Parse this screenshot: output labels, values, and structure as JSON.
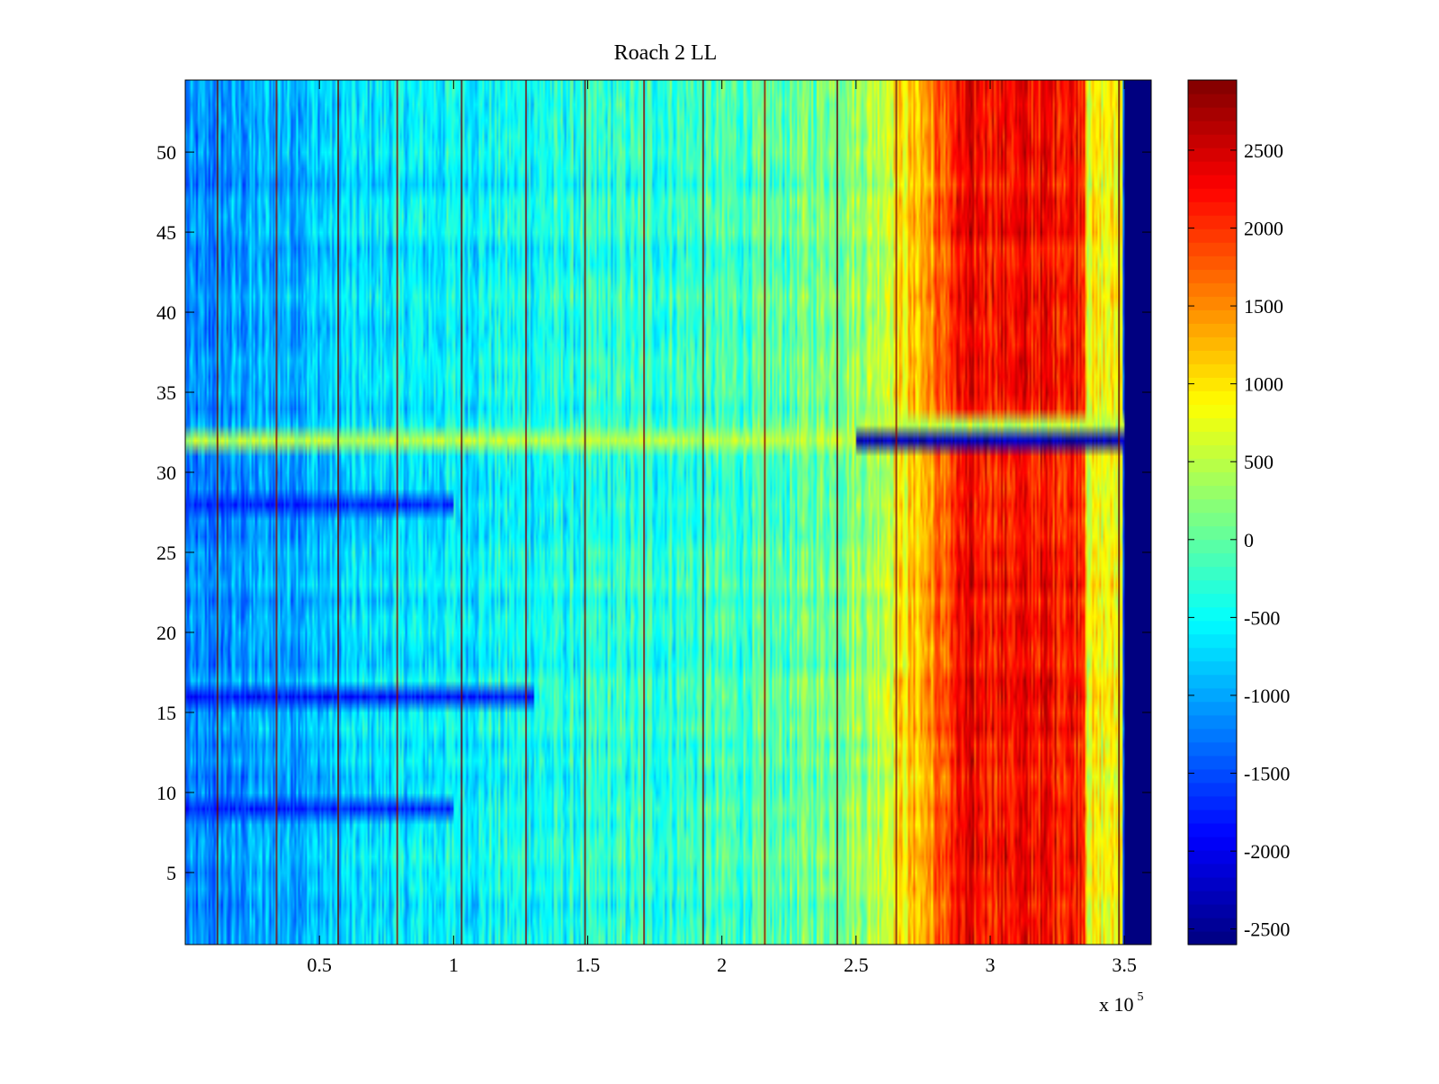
{
  "chart_data": {
    "type": "heatmap",
    "title": "Roach 2 LL",
    "xlabel": "",
    "ylabel": "",
    "x_multiplier_label": {
      "base": "x 10",
      "exponent": "5"
    },
    "xlim": [
      0,
      360000
    ],
    "ylim": [
      0.5,
      54.5
    ],
    "x_ticks": [
      {
        "value": 50000,
        "label": "0.5"
      },
      {
        "value": 100000,
        "label": "1"
      },
      {
        "value": 150000,
        "label": "1.5"
      },
      {
        "value": 200000,
        "label": "2"
      },
      {
        "value": 250000,
        "label": "2.5"
      },
      {
        "value": 300000,
        "label": "3"
      },
      {
        "value": 350000,
        "label": "3.5"
      }
    ],
    "y_ticks": [
      {
        "value": 5,
        "label": "5"
      },
      {
        "value": 10,
        "label": "10"
      },
      {
        "value": 15,
        "label": "15"
      },
      {
        "value": 20,
        "label": "20"
      },
      {
        "value": 25,
        "label": "25"
      },
      {
        "value": 30,
        "label": "30"
      },
      {
        "value": 35,
        "label": "35"
      },
      {
        "value": 40,
        "label": "40"
      },
      {
        "value": 45,
        "label": "45"
      },
      {
        "value": 50,
        "label": "50"
      }
    ],
    "colorbar": {
      "colormap": "jet",
      "range": [
        -2600,
        2950
      ],
      "ticks": [
        {
          "value": 2500,
          "label": "2500"
        },
        {
          "value": 2000,
          "label": "2000"
        },
        {
          "value": 1500,
          "label": "1500"
        },
        {
          "value": 1000,
          "label": "1000"
        },
        {
          "value": 500,
          "label": "500"
        },
        {
          "value": 0,
          "label": "0"
        },
        {
          "value": -500,
          "label": "-500"
        },
        {
          "value": -1000,
          "label": "-1000"
        },
        {
          "value": -1500,
          "label": "-1500"
        },
        {
          "value": -2000,
          "label": "-2000"
        },
        {
          "value": -2500,
          "label": "-2500"
        }
      ]
    },
    "rows": 54,
    "x_profile": [
      {
        "x": 0,
        "value": -1300
      },
      {
        "x": 30000,
        "value": -1000
      },
      {
        "x": 80000,
        "value": -650
      },
      {
        "x": 150000,
        "value": -400
      },
      {
        "x": 220000,
        "value": -150
      },
      {
        "x": 255000,
        "value": 350
      },
      {
        "x": 275000,
        "value": 1300
      },
      {
        "x": 290000,
        "value": 2200
      },
      {
        "x": 335000,
        "value": 2200
      },
      {
        "x": 336000,
        "value": 800
      },
      {
        "x": 349000,
        "value": 800
      },
      {
        "x": 350000,
        "value": -2600
      },
      {
        "x": 360000,
        "value": -2600
      }
    ],
    "special_rows": [
      {
        "row": 32,
        "value": 500,
        "x_from": 0,
        "x_to": 250000
      },
      {
        "row": 32,
        "value": -2300,
        "x_from": 250000,
        "x_to": 350000
      },
      {
        "row": 33,
        "value": 500,
        "x_from": 250000,
        "x_to": 350000
      },
      {
        "row": 28,
        "value": -1700,
        "x_from": 0,
        "x_to": 100000
      },
      {
        "row": 16,
        "value": -1800,
        "x_from": 0,
        "x_to": 130000
      },
      {
        "row": 9,
        "value": -1700,
        "x_from": 0,
        "x_to": 100000
      }
    ],
    "vertical_lines": [
      12000,
      34000,
      57000,
      79000,
      103000,
      127000,
      149000,
      171000,
      193000,
      216000,
      243000,
      265000,
      348000
    ]
  }
}
